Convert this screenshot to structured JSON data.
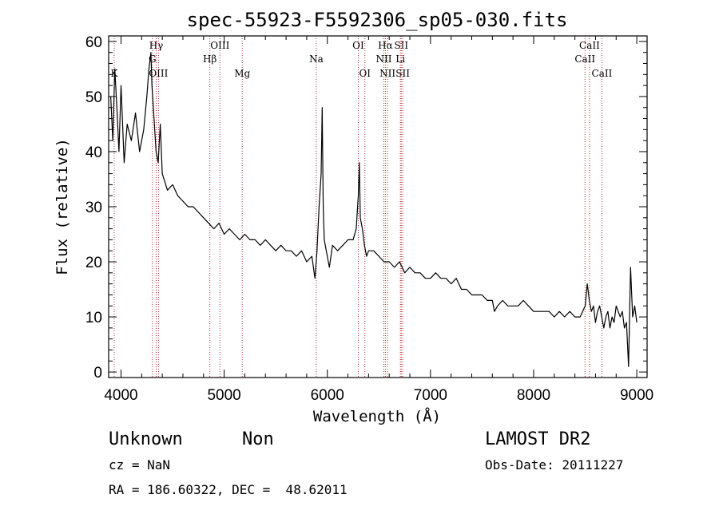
{
  "chart_data": {
    "type": "line",
    "title": "spec-55923-F5592306_sp05-030.fits",
    "xlabel": "Wavelength (Å)",
    "ylabel": "Flux (relative)",
    "xlim": [
      3880,
      9100
    ],
    "ylim": [
      -1,
      61
    ],
    "x_ticks": [
      4000,
      5000,
      6000,
      7000,
      8000,
      9000
    ],
    "y_ticks": [
      0,
      10,
      20,
      30,
      40,
      50,
      60
    ],
    "grid": false,
    "line_color": "#000000",
    "marker_color": "#b03030",
    "series": [
      {
        "x": [
          3900,
          3920,
          3940,
          3960,
          3980,
          4000,
          4030,
          4060,
          4100,
          4140,
          4180,
          4220,
          4250,
          4270,
          4290,
          4300,
          4320,
          4340,
          4360,
          4380,
          4400,
          4450,
          4500,
          4550,
          4600,
          4650,
          4700,
          4750,
          4800,
          4850,
          4900,
          4950,
          5000,
          5050,
          5100,
          5150,
          5200,
          5250,
          5300,
          5350,
          5400,
          5450,
          5500,
          5550,
          5600,
          5650,
          5700,
          5750,
          5800,
          5850,
          5880,
          5900,
          5920,
          5940,
          5950,
          5960,
          5970,
          5990,
          6020,
          6050,
          6100,
          6150,
          6200,
          6250,
          6280,
          6300,
          6310,
          6320,
          6340,
          6360,
          6380,
          6400,
          6450,
          6500,
          6550,
          6600,
          6650,
          6700,
          6750,
          6800,
          6850,
          6900,
          6950,
          7000,
          7050,
          7100,
          7150,
          7200,
          7250,
          7300,
          7350,
          7400,
          7450,
          7500,
          7550,
          7600,
          7620,
          7650,
          7700,
          7750,
          7800,
          7850,
          7900,
          7950,
          8000,
          8050,
          8100,
          8150,
          8200,
          8250,
          8300,
          8350,
          8400,
          8450,
          8500,
          8520,
          8540,
          8560,
          8580,
          8600,
          8620,
          8640,
          8660,
          8680,
          8700,
          8720,
          8740,
          8760,
          8780,
          8800,
          8820,
          8840,
          8860,
          8880,
          8900,
          8920,
          8940,
          8960,
          8980,
          9000
        ],
        "y": [
          50,
          42,
          55,
          48,
          40,
          52,
          38,
          45,
          42,
          47,
          40,
          44,
          50,
          55,
          58,
          52,
          46,
          40,
          38,
          45,
          36,
          33,
          34,
          32,
          31,
          30,
          30,
          29,
          28,
          27,
          26,
          27,
          25,
          26,
          25,
          24,
          25,
          24,
          24,
          23,
          24,
          23,
          22,
          23,
          22,
          22,
          21,
          22,
          20,
          21,
          17,
          22,
          30,
          36,
          48,
          30,
          24,
          22,
          19,
          23,
          22,
          23,
          24,
          24,
          26,
          32,
          38,
          28,
          26,
          23,
          21,
          22,
          22,
          21,
          20,
          20,
          19,
          20,
          18,
          19,
          18,
          18,
          17,
          17,
          18,
          17,
          17,
          16,
          17,
          15,
          15,
          14,
          14,
          14,
          13,
          13,
          11,
          12,
          13,
          12,
          12,
          12,
          13,
          12,
          11,
          11,
          11,
          11,
          10,
          11,
          10,
          11,
          10,
          10,
          12,
          16,
          13,
          11,
          12,
          9,
          11,
          12,
          10,
          8,
          10,
          11,
          8,
          10,
          9,
          12,
          11,
          10,
          11,
          8,
          9,
          1,
          19,
          10,
          12,
          9
        ]
      }
    ],
    "spectral_lines": [
      {
        "label": "K",
        "x": 3934,
        "row": 3
      },
      {
        "label": "Hγ",
        "x": 4341,
        "row": 1
      },
      {
        "label": "G",
        "x": 4304,
        "row": 2
      },
      {
        "label": "OIII",
        "x": 4363,
        "row": 3
      },
      {
        "label": "Hβ",
        "x": 4861,
        "row": 2
      },
      {
        "label": "OIII",
        "x": 4959,
        "row": 1
      },
      {
        "label": "Mg",
        "x": 5175,
        "row": 3
      },
      {
        "label": "Na",
        "x": 5893,
        "row": 2
      },
      {
        "label": "OI",
        "x": 6300,
        "row": 1
      },
      {
        "label": "OI",
        "x": 6364,
        "row": 3
      },
      {
        "label": "Hα",
        "x": 6563,
        "row": 1
      },
      {
        "label": "NII",
        "x": 6548,
        "row": 2
      },
      {
        "label": "NII",
        "x": 6584,
        "row": 3
      },
      {
        "label": "SII",
        "x": 6717,
        "row": 1
      },
      {
        "label": "Li",
        "x": 6708,
        "row": 2
      },
      {
        "label": "SII",
        "x": 6731,
        "row": 3
      },
      {
        "label": "CaII",
        "x": 8542,
        "row": 1
      },
      {
        "label": "CaII",
        "x": 8498,
        "row": 2
      },
      {
        "label": "CaII",
        "x": 8662,
        "row": 3
      }
    ]
  },
  "info": {
    "object_class": "Unknown",
    "object_subclass": "Non",
    "survey": "LAMOST DR2",
    "cz": "cz = NaN",
    "obs_date": "Obs-Date: 20111227",
    "coords": "RA = 186.60322, DEC =  48.62011"
  }
}
